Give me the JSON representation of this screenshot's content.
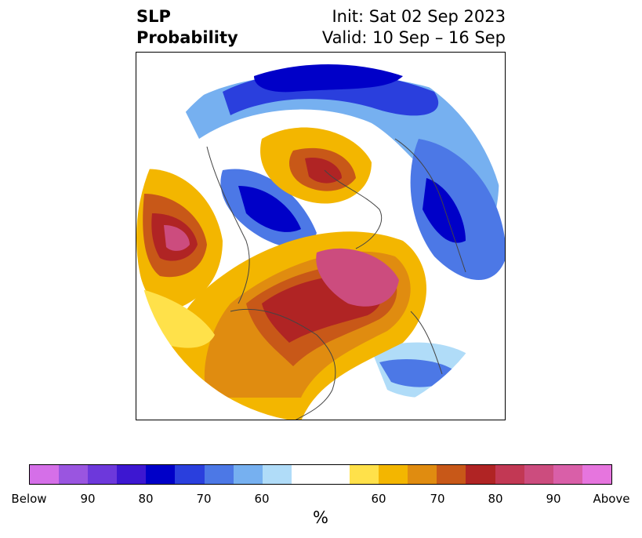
{
  "title": {
    "left_line1": "SLP",
    "left_line2": "Probability",
    "right_line1": "Init: Sat 02 Sep 2023",
    "right_line2": "Valid: 10 Sep – 16 Sep"
  },
  "colorbar": {
    "unit": "%",
    "ticks": [
      "Below",
      "90",
      "80",
      "70",
      "60",
      "60",
      "70",
      "80",
      "90",
      "Above"
    ],
    "colors": [
      "#d56fe8",
      "#9a55e0",
      "#6d38db",
      "#3d17d1",
      "#0000c8",
      "#2a3fdd",
      "#4c78e6",
      "#76b0f0",
      "#b0dcf8",
      "#ffffff",
      "#ffe14a",
      "#f3b600",
      "#e08c10",
      "#c85818",
      "#b02424",
      "#c23854",
      "#cc4c7e",
      "#d95fa8",
      "#e675de"
    ]
  },
  "map": {
    "projection": "north-polar-stereographic",
    "field": "sea-level-pressure-probability"
  }
}
